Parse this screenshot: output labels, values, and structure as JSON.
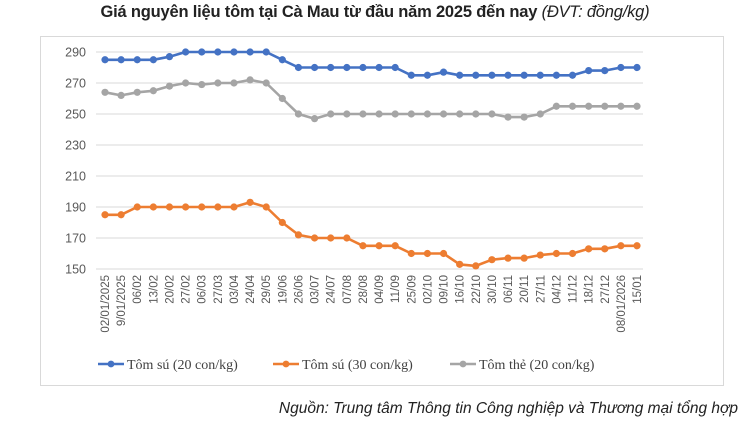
{
  "title": {
    "main": "Giá nguyên liệu tôm tại Cà Mau từ đầu năm 2025 đến nay",
    "unit": "(ĐVT: đồng/kg)"
  },
  "source": "Nguồn: Trung tâm Thông tin Công nghiệp và Thương mại tổng hợp",
  "chart_data": {
    "type": "line",
    "title": "Giá nguyên liệu tôm tại Cà Mau từ đầu năm 2025 đến nay (ĐVT: đồng/kg)",
    "xlabel": "",
    "ylabel": "",
    "ylim": [
      150,
      290
    ],
    "yticks": [
      150,
      170,
      190,
      210,
      230,
      250,
      270,
      290
    ],
    "grid": true,
    "legend_position": "bottom",
    "categories": [
      "02/01/2025",
      "9/01/2025",
      "06/02",
      "13/02",
      "20/02",
      "27/02",
      "06/03",
      "27/03",
      "03/04",
      "24/04",
      "29/05",
      "19/06",
      "26/06",
      "03/07",
      "24/07",
      "07/08",
      "28/08",
      "04/09",
      "11/09",
      "25/09",
      "02/10",
      "09/10",
      "16/10",
      "22/10",
      "30/10",
      "06/11",
      "20/11",
      "27/11",
      "04/12",
      "11/12",
      "18/12",
      "27/12",
      "08/01/2026",
      "15/01"
    ],
    "series": [
      {
        "name": "Tôm sú (20 con/kg)",
        "color": "#4472C4",
        "values": [
          285,
          285,
          285,
          285,
          287,
          290,
          290,
          290,
          290,
          290,
          290,
          285,
          280,
          280,
          280,
          280,
          280,
          280,
          280,
          275,
          275,
          277,
          275,
          275,
          275,
          275,
          275,
          275,
          275,
          275,
          278,
          278,
          280,
          280
        ]
      },
      {
        "name": "Tôm sú (30 con/kg)",
        "color": "#ED7D31",
        "values": [
          185,
          185,
          190,
          190,
          190,
          190,
          190,
          190,
          190,
          193,
          190,
          180,
          172,
          170,
          170,
          170,
          165,
          165,
          165,
          160,
          160,
          160,
          153,
          152,
          156,
          157,
          157,
          159,
          160,
          160,
          163,
          163,
          165,
          165
        ]
      },
      {
        "name": "Tôm thẻ (20 con/kg)",
        "color": "#A5A5A5",
        "values": [
          264,
          262,
          264,
          265,
          268,
          270,
          269,
          270,
          270,
          272,
          270,
          260,
          250,
          247,
          250,
          250,
          250,
          250,
          250,
          250,
          250,
          250,
          250,
          250,
          250,
          248,
          248,
          250,
          255,
          255,
          255,
          255,
          255,
          255
        ]
      }
    ]
  }
}
